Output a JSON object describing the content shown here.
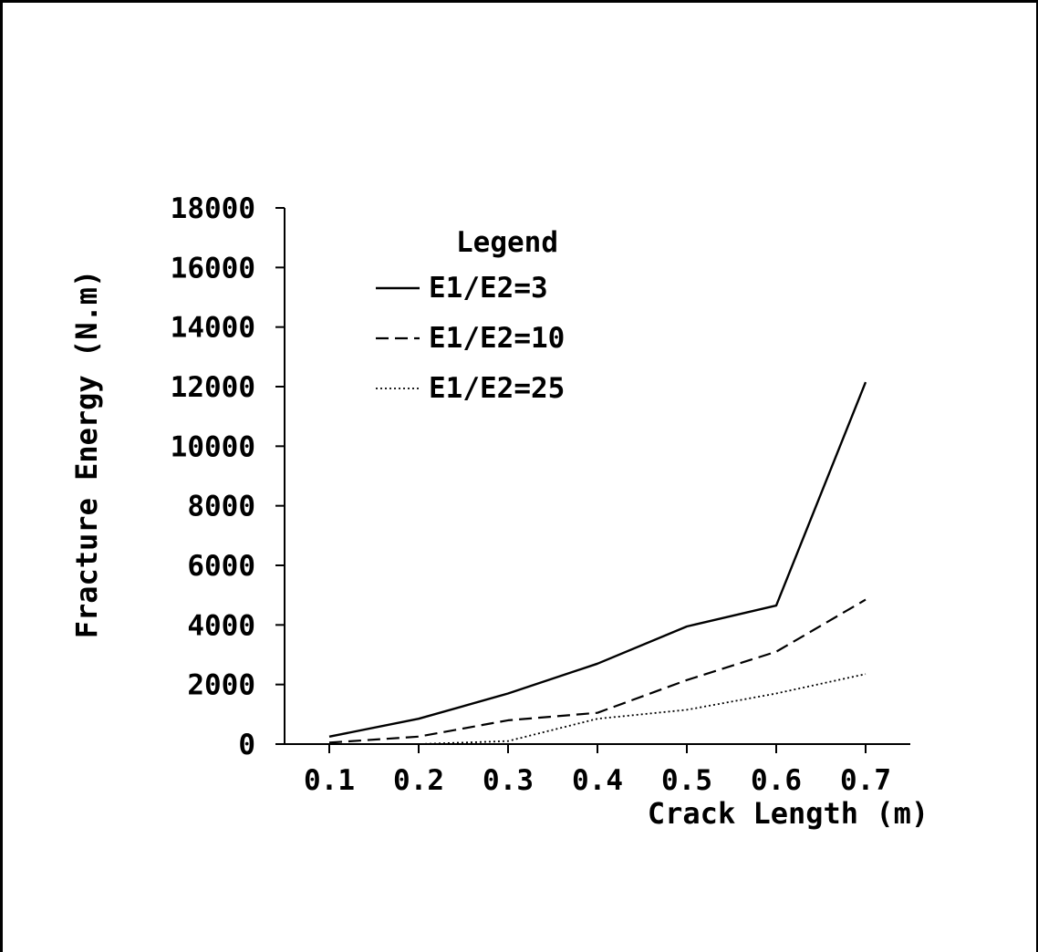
{
  "chart_data": {
    "type": "line",
    "xlabel": "Crack Length (m)",
    "ylabel": "Fracture Energy (N.m)",
    "x": [
      0.1,
      0.2,
      0.3,
      0.4,
      0.5,
      0.6,
      0.7
    ],
    "xticks": [
      "0.1",
      "0.2",
      "0.3",
      "0.4",
      "0.5",
      "0.6",
      "0.7"
    ],
    "yticks": [
      "0",
      "2000",
      "4000",
      "6000",
      "8000",
      "10000",
      "12000",
      "14000",
      "16000",
      "18000"
    ],
    "xlim": [
      0.05,
      0.75
    ],
    "ylim": [
      0,
      18000
    ],
    "grid": false,
    "legend": {
      "title": "Legend",
      "placement": "top-left"
    },
    "series": [
      {
        "name": "E1/E2=3",
        "style": "solid",
        "values": [
          250,
          850,
          1700,
          2700,
          3950,
          4650,
          12150
        ]
      },
      {
        "name": "E1/E2=10",
        "style": "dashed",
        "values": [
          50,
          250,
          800,
          1050,
          2150,
          3100,
          4850
        ]
      },
      {
        "name": "E1/E2=25",
        "style": "dotted",
        "values": [
          0,
          0,
          100,
          850,
          1150,
          1700,
          2350
        ]
      }
    ]
  }
}
